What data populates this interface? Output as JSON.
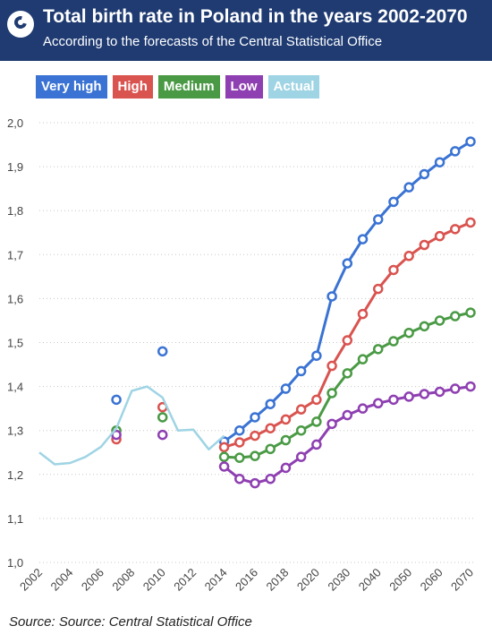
{
  "header": {
    "title": "Total birth rate in Poland in the years 2002-2070",
    "subtitle": "According to the forecasts of the Central Statistical Office"
  },
  "source": "Source: Source: Central Statistical Office",
  "colors": {
    "header_bg": "#1f3b72",
    "very_high": "#3a73d3",
    "high": "#d9534f",
    "medium": "#4a9a45",
    "low": "#8e3fb1",
    "actual": "#9fd4e4"
  },
  "chart_data": {
    "type": "line",
    "title": "Total birth rate in Poland in the years 2002-2070",
    "subtitle": "According to the forecasts of the Central Statistical Office",
    "legend_placement": "top-left",
    "grid": true,
    "x_ticks": [
      "2002",
      "2004",
      "2006",
      "2008",
      "2010",
      "2012",
      "2014",
      "2016",
      "2018",
      "2020",
      "2030",
      "2040",
      "2050",
      "2060",
      "2070"
    ],
    "ylim": [
      1.0,
      2.0
    ],
    "y_ticks": [
      "1,0",
      "1,1",
      "1,2",
      "1,3",
      "1,4",
      "1,5",
      "1,6",
      "1,7",
      "1,8",
      "1,9",
      "2,0"
    ],
    "series": [
      {
        "name": "Very high",
        "color": "#3a73d3",
        "points": [
          [
            2007,
            1.37
          ],
          [
            2010,
            1.48
          ]
        ],
        "line": [
          [
            2014,
            1.275
          ],
          [
            2015,
            1.3
          ],
          [
            2016,
            1.33
          ],
          [
            2017,
            1.36
          ],
          [
            2018,
            1.395
          ],
          [
            2019,
            1.435
          ],
          [
            2020,
            1.47
          ],
          [
            2025,
            1.605
          ],
          [
            2030,
            1.68
          ],
          [
            2035,
            1.735
          ],
          [
            2040,
            1.78
          ],
          [
            2045,
            1.82
          ],
          [
            2050,
            1.853
          ],
          [
            2055,
            1.883
          ],
          [
            2060,
            1.91
          ],
          [
            2065,
            1.935
          ],
          [
            2070,
            1.957
          ]
        ]
      },
      {
        "name": "High",
        "color": "#d9534f",
        "points": [
          [
            2007,
            1.28
          ],
          [
            2010,
            1.353
          ]
        ],
        "line": [
          [
            2014,
            1.262
          ],
          [
            2015,
            1.273
          ],
          [
            2016,
            1.288
          ],
          [
            2017,
            1.305
          ],
          [
            2018,
            1.325
          ],
          [
            2019,
            1.348
          ],
          [
            2020,
            1.37
          ],
          [
            2025,
            1.447
          ],
          [
            2030,
            1.505
          ],
          [
            2035,
            1.565
          ],
          [
            2040,
            1.622
          ],
          [
            2045,
            1.665
          ],
          [
            2050,
            1.697
          ],
          [
            2055,
            1.722
          ],
          [
            2060,
            1.742
          ],
          [
            2065,
            1.758
          ],
          [
            2070,
            1.773
          ]
        ]
      },
      {
        "name": "Medium",
        "color": "#4a9a45",
        "points": [
          [
            2007,
            1.3
          ],
          [
            2010,
            1.33
          ]
        ],
        "line": [
          [
            2014,
            1.24
          ],
          [
            2015,
            1.238
          ],
          [
            2016,
            1.242
          ],
          [
            2017,
            1.258
          ],
          [
            2018,
            1.278
          ],
          [
            2019,
            1.3
          ],
          [
            2020,
            1.32
          ],
          [
            2025,
            1.385
          ],
          [
            2030,
            1.43
          ],
          [
            2035,
            1.462
          ],
          [
            2040,
            1.485
          ],
          [
            2045,
            1.503
          ],
          [
            2050,
            1.522
          ],
          [
            2055,
            1.537
          ],
          [
            2060,
            1.55
          ],
          [
            2065,
            1.56
          ],
          [
            2070,
            1.568
          ]
        ]
      },
      {
        "name": "Low",
        "color": "#8e3fb1",
        "points": [
          [
            2007,
            1.29
          ],
          [
            2010,
            1.29
          ]
        ],
        "line": [
          [
            2014,
            1.218
          ],
          [
            2015,
            1.19
          ],
          [
            2016,
            1.18
          ],
          [
            2017,
            1.19
          ],
          [
            2018,
            1.215
          ],
          [
            2019,
            1.24
          ],
          [
            2020,
            1.268
          ],
          [
            2025,
            1.315
          ],
          [
            2030,
            1.335
          ],
          [
            2035,
            1.35
          ],
          [
            2040,
            1.362
          ],
          [
            2045,
            1.37
          ],
          [
            2050,
            1.377
          ],
          [
            2055,
            1.383
          ],
          [
            2060,
            1.388
          ],
          [
            2065,
            1.395
          ],
          [
            2070,
            1.4
          ]
        ]
      },
      {
        "name": "Actual",
        "color": "#9fd4e4",
        "points": [],
        "line": [
          [
            2002,
            1.25
          ],
          [
            2003,
            1.223
          ],
          [
            2004,
            1.226
          ],
          [
            2005,
            1.24
          ],
          [
            2006,
            1.263
          ],
          [
            2007,
            1.305
          ],
          [
            2008,
            1.39
          ],
          [
            2009,
            1.4
          ],
          [
            2010,
            1.375
          ],
          [
            2011,
            1.3
          ],
          [
            2012,
            1.302
          ],
          [
            2013,
            1.257
          ],
          [
            2014,
            1.288
          ]
        ]
      }
    ]
  }
}
